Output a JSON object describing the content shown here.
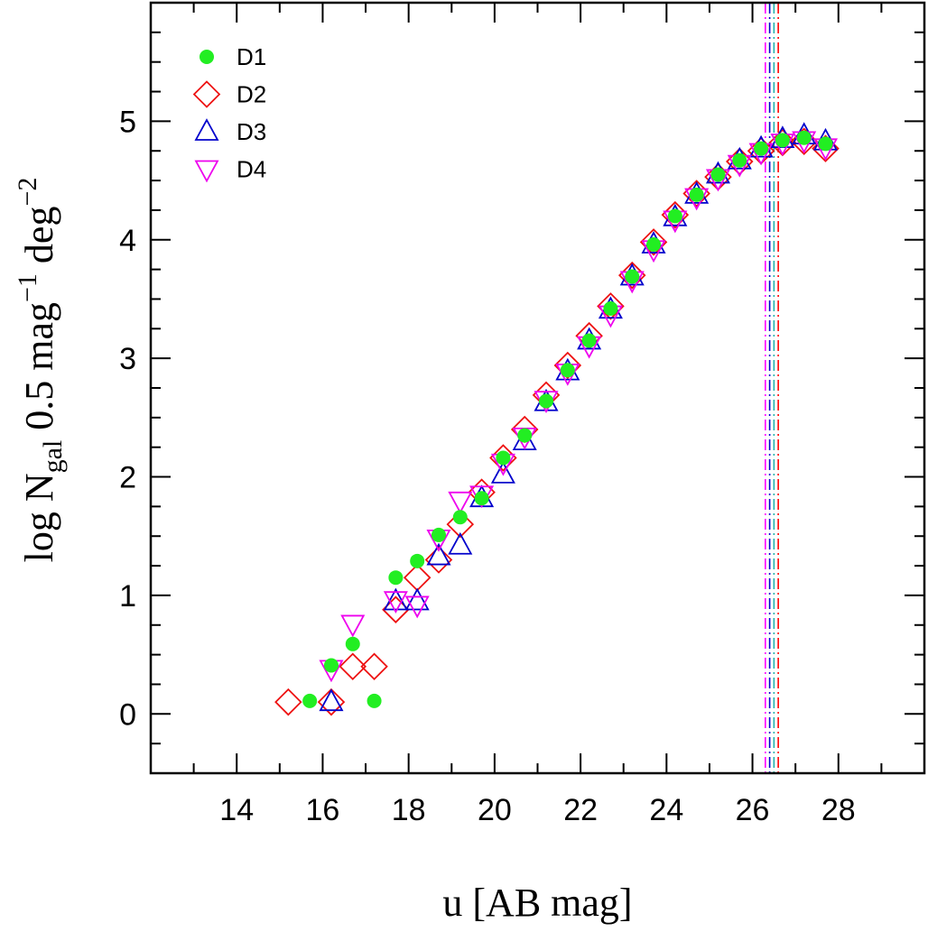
{
  "chart_data": {
    "type": "scatter",
    "xlabel": "u [AB mag]",
    "ylabel": {
      "prefix": "log N",
      "subscript": "gal",
      "middle": " 0.5 mag",
      "sup1": "−1",
      "unit": " deg",
      "sup2": "−2"
    },
    "xlim": [
      12,
      30
    ],
    "ylim": [
      -0.5,
      6.0
    ],
    "xticks": [
      14,
      16,
      18,
      20,
      22,
      24,
      26,
      28
    ],
    "yticks": [
      0,
      1,
      2,
      3,
      4,
      5
    ],
    "legend_position": "top-left",
    "grid": false,
    "completeness_limits": [
      {
        "x": 26.3,
        "color": "#ff00ff"
      },
      {
        "x": 26.4,
        "color": "#0000cc"
      },
      {
        "x": 26.5,
        "color": "#20b2aa"
      },
      {
        "x": 26.6,
        "color": "#ff0000"
      }
    ],
    "series": [
      {
        "name": "D1",
        "marker": "filled-circle",
        "color": "#22ee22",
        "points": [
          [
            15.7,
            0.11
          ],
          [
            16.2,
            0.41
          ],
          [
            16.7,
            0.59
          ],
          [
            17.2,
            0.11
          ],
          [
            17.7,
            1.15
          ],
          [
            18.2,
            1.29
          ],
          [
            18.7,
            1.51
          ],
          [
            19.2,
            1.66
          ],
          [
            19.7,
            1.82
          ],
          [
            20.2,
            2.16
          ],
          [
            20.7,
            2.35
          ],
          [
            21.2,
            2.64
          ],
          [
            21.7,
            2.9
          ],
          [
            22.2,
            3.15
          ],
          [
            22.7,
            3.42
          ],
          [
            23.2,
            3.69
          ],
          [
            23.7,
            3.96
          ],
          [
            24.2,
            4.2
          ],
          [
            24.7,
            4.38
          ],
          [
            25.2,
            4.55
          ],
          [
            25.7,
            4.67
          ],
          [
            26.2,
            4.77
          ],
          [
            26.7,
            4.84
          ],
          [
            27.2,
            4.86
          ],
          [
            27.7,
            4.81
          ]
        ]
      },
      {
        "name": "D2",
        "marker": "open-diamond",
        "color": "#ee1111",
        "points": [
          [
            15.2,
            0.1
          ],
          [
            16.2,
            0.1
          ],
          [
            16.7,
            0.4
          ],
          [
            17.2,
            0.4
          ],
          [
            17.7,
            0.88
          ],
          [
            18.2,
            1.15
          ],
          [
            18.7,
            1.3
          ],
          [
            19.2,
            1.6
          ],
          [
            19.7,
            1.87
          ],
          [
            20.2,
            2.16
          ],
          [
            20.7,
            2.4
          ],
          [
            21.2,
            2.69
          ],
          [
            21.7,
            2.94
          ],
          [
            22.2,
            3.19
          ],
          [
            22.7,
            3.44
          ],
          [
            23.2,
            3.7
          ],
          [
            23.7,
            3.98
          ],
          [
            24.2,
            4.21
          ],
          [
            24.7,
            4.39
          ],
          [
            25.2,
            4.53
          ],
          [
            25.7,
            4.66
          ],
          [
            26.2,
            4.75
          ],
          [
            26.7,
            4.82
          ],
          [
            27.2,
            4.83
          ],
          [
            27.7,
            4.77
          ]
        ]
      },
      {
        "name": "D3",
        "marker": "open-triangle-up",
        "color": "#0000cc",
        "points": [
          [
            16.2,
            0.1
          ],
          [
            17.7,
            0.95
          ],
          [
            18.2,
            0.95
          ],
          [
            18.7,
            1.33
          ],
          [
            19.2,
            1.42
          ],
          [
            19.7,
            1.82
          ],
          [
            20.2,
            2.02
          ],
          [
            20.7,
            2.3
          ],
          [
            21.2,
            2.63
          ],
          [
            21.7,
            2.89
          ],
          [
            22.2,
            3.15
          ],
          [
            22.7,
            3.41
          ],
          [
            23.2,
            3.69
          ],
          [
            23.7,
            3.96
          ],
          [
            24.2,
            4.19
          ],
          [
            24.7,
            4.38
          ],
          [
            25.2,
            4.55
          ],
          [
            25.7,
            4.67
          ],
          [
            26.2,
            4.77
          ],
          [
            26.7,
            4.85
          ],
          [
            27.2,
            4.88
          ],
          [
            27.7,
            4.83
          ]
        ]
      },
      {
        "name": "D4",
        "marker": "open-triangle-down",
        "color": "#ee00ee",
        "points": [
          [
            16.2,
            0.38
          ],
          [
            16.7,
            0.76
          ],
          [
            17.7,
            0.96
          ],
          [
            18.2,
            0.92
          ],
          [
            18.7,
            1.48
          ],
          [
            19.2,
            1.8
          ],
          [
            19.7,
            1.85
          ],
          [
            20.2,
            2.12
          ],
          [
            20.7,
            2.34
          ],
          [
            21.2,
            2.65
          ],
          [
            21.7,
            2.88
          ],
          [
            22.2,
            3.11
          ],
          [
            22.7,
            3.37
          ],
          [
            23.2,
            3.66
          ],
          [
            23.7,
            3.92
          ],
          [
            24.2,
            4.17
          ],
          [
            24.7,
            4.36
          ],
          [
            25.2,
            4.52
          ],
          [
            25.7,
            4.64
          ],
          [
            26.2,
            4.74
          ],
          [
            26.7,
            4.82
          ],
          [
            27.2,
            4.84
          ],
          [
            27.7,
            4.78
          ]
        ]
      }
    ]
  }
}
